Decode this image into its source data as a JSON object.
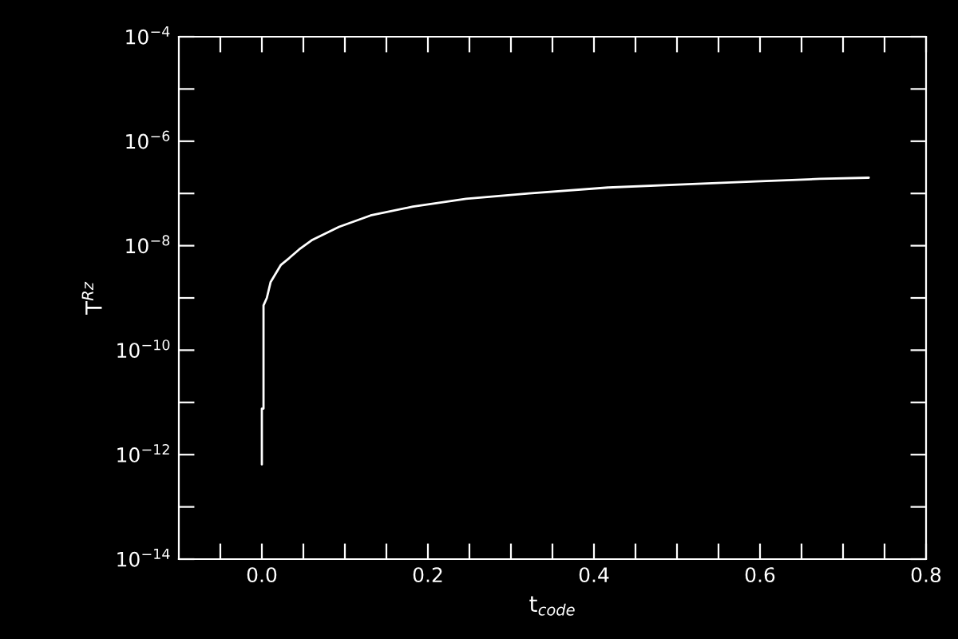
{
  "chart_data": {
    "type": "line",
    "xlabel": "t$_{code}$",
    "ylabel": "T$^{Rz}$",
    "log": "y",
    "grid": false,
    "legend": false,
    "marker": "none",
    "line_style": "solid",
    "xlim": [
      -0.1,
      0.8
    ],
    "ylim": [
      1e-14,
      0.0001
    ],
    "xticks": [
      {
        "value": -0.05,
        "label": null
      },
      {
        "value": 0,
        "label": "0.0"
      },
      {
        "value": 0.05,
        "label": null
      },
      {
        "value": 0.1,
        "label": null
      },
      {
        "value": 0.15,
        "label": null
      },
      {
        "value": 0.2,
        "label": "0.2"
      },
      {
        "value": 0.25,
        "label": null
      },
      {
        "value": 0.3,
        "label": null
      },
      {
        "value": 0.35,
        "label": null
      },
      {
        "value": 0.4,
        "label": "0.4"
      },
      {
        "value": 0.45,
        "label": null
      },
      {
        "value": 0.5,
        "label": null
      },
      {
        "value": 0.55,
        "label": null
      },
      {
        "value": 0.6,
        "label": "0.6"
      },
      {
        "value": 0.65,
        "label": null
      },
      {
        "value": 0.7,
        "label": null
      },
      {
        "value": 0.75,
        "label": null
      },
      {
        "value": 0.8,
        "label": "0.8"
      }
    ],
    "yticks": [
      {
        "value": 1e-14,
        "label": "10$^{−14}$"
      },
      {
        "value": 1e-13,
        "label": null
      },
      {
        "value": 1e-12,
        "label": "10$^{−12}$"
      },
      {
        "value": 1e-11,
        "label": null
      },
      {
        "value": 1e-10,
        "label": "10$^{−10}$"
      },
      {
        "value": 1e-09,
        "label": null
      },
      {
        "value": 1e-08,
        "label": "10$^{−8}$"
      },
      {
        "value": 1e-07,
        "label": null
      },
      {
        "value": 1e-06,
        "label": "10$^{−6}$"
      },
      {
        "value": 1e-05,
        "label": null
      },
      {
        "value": 0.0001,
        "label": "10$^{−4}$"
      }
    ],
    "series": [
      {
        "color": "#ffffff",
        "x": [
          0.0,
          0.0,
          0.002,
          0.002,
          0.006,
          0.0105,
          0.023,
          0.033,
          0.045,
          0.061,
          0.093,
          0.131,
          0.182,
          0.246,
          0.322,
          0.417,
          0.513,
          0.595,
          0.672,
          0.731
        ],
        "values": [
          6.5e-13,
          7.6e-12,
          7.6e-12,
          7.2e-10,
          1e-09,
          2e-09,
          4.3e-09,
          5.8e-09,
          8.5e-09,
          1.3e-08,
          2.3e-08,
          3.8e-08,
          5.6e-08,
          7.9e-08,
          1e-07,
          1.3e-07,
          1.5e-07,
          1.7e-07,
          1.9e-07,
          2e-07
        ]
      }
    ]
  }
}
